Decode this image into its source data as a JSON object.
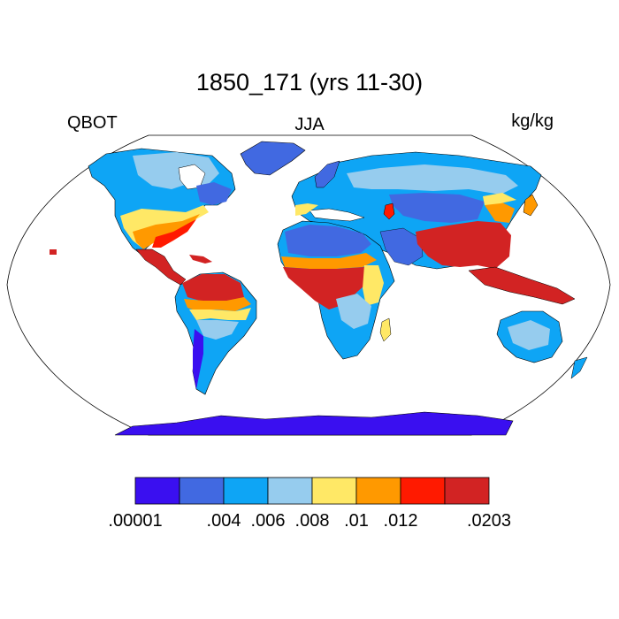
{
  "title": "1850_171 (yrs 11-30)",
  "variable": "QBOT",
  "season": "JJA",
  "units": "kg/kg",
  "colorbar": {
    "colors": [
      "#3a0ff0",
      "#4169e1",
      "#0ea5f5",
      "#96ccee",
      "#ffe866",
      "#ff9900",
      "#ff1a00",
      "#d22323"
    ],
    "labels": [
      ".00001",
      ".004",
      ".006",
      ".008",
      ".01",
      ".012",
      ".0203"
    ]
  },
  "map": {
    "projection": "robinson",
    "ocean_color": "#ffffff",
    "outline_color": "#000000"
  }
}
